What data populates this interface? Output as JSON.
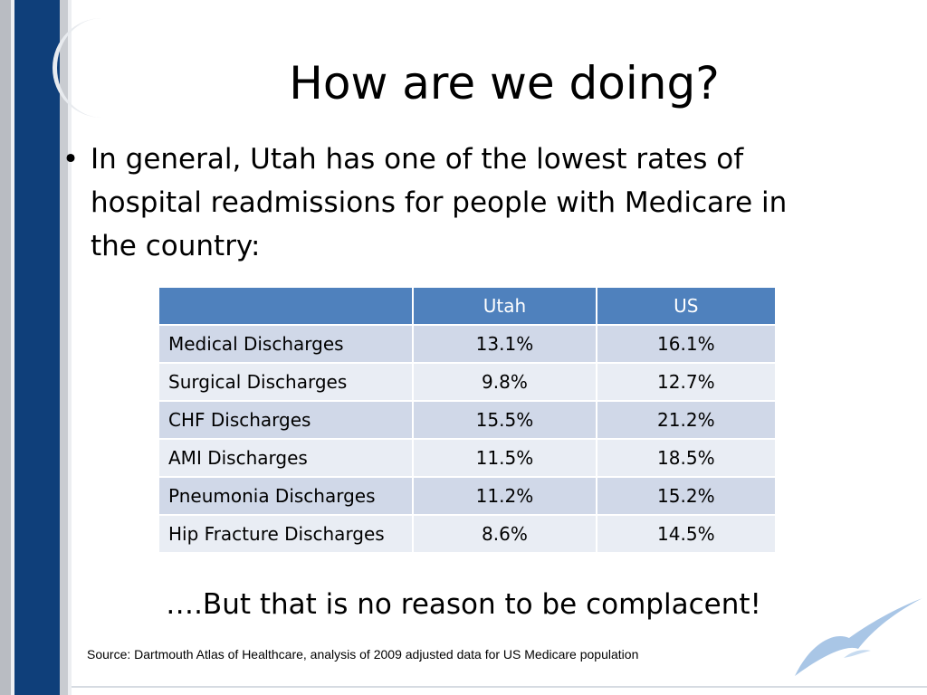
{
  "slide": {
    "title": "How are we doing?",
    "bullet": "In general, Utah has one of the lowest rates of hospital readmissions for people with Medicare  in the country:",
    "closing": "….But that is no reason to be complacent!",
    "source": "Source: Dartmouth Atlas of Healthcare, analysis of 2009 adjusted data for US Medicare population"
  },
  "table": {
    "headers": [
      "",
      "Utah",
      "US"
    ],
    "rows": [
      {
        "label": "Medical Discharges",
        "utah": "13.1%",
        "us": "16.1%"
      },
      {
        "label": "Surgical Discharges",
        "utah": "9.8%",
        "us": "12.7%"
      },
      {
        "label": "CHF Discharges",
        "utah": "15.5%",
        "us": "21.2%"
      },
      {
        "label": "AMI Discharges",
        "utah": "11.5%",
        "us": "18.5%"
      },
      {
        "label": "Pneumonia Discharges",
        "utah": "11.2%",
        "us": "15.2%"
      },
      {
        "label": "Hip Fracture Discharges",
        "utah": "8.6%",
        "us": "14.5%"
      }
    ]
  },
  "colors": {
    "header": "#4f81bd",
    "row_odd": "#d0d8e8",
    "row_even": "#e9edf4",
    "sidebar": "#0f3f7a",
    "bird": "#a9c6e6"
  },
  "icons": {
    "bullet": "•",
    "decoration": "seagull-icon"
  }
}
